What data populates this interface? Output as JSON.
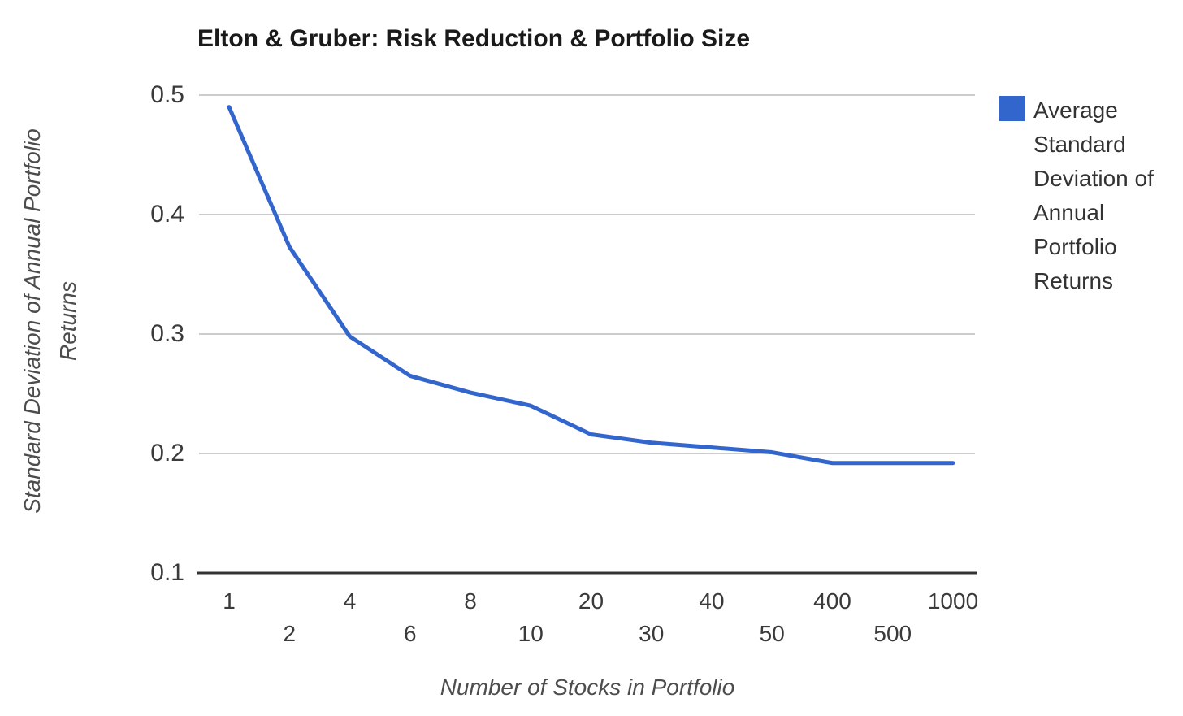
{
  "chart_data": {
    "type": "line",
    "title": "Elton & Gruber: Risk Reduction & Portfolio Size",
    "xlabel": "Number of Stocks in Portfolio",
    "ylabel": "Standard Deviation of Annual Portfolio Returns",
    "x_axis_type": "categorical-evenly-spaced",
    "x_tick_layout": "staggered-two-rows",
    "categories": [
      "1",
      "2",
      "4",
      "6",
      "8",
      "10",
      "20",
      "30",
      "40",
      "50",
      "400",
      "500",
      "1000"
    ],
    "series": [
      {
        "name": "Average Standard Deviation of Annual Portfolio Returns",
        "color": "#3366cc",
        "values": [
          0.49,
          0.373,
          0.298,
          0.265,
          0.251,
          0.24,
          0.216,
          0.209,
          0.205,
          0.201,
          0.192,
          0.192,
          0.192
        ]
      }
    ],
    "ylim": [
      0.1,
      0.5
    ],
    "yticks": [
      0.1,
      0.2,
      0.3,
      0.4,
      0.5
    ],
    "grid": "horizontal",
    "legend_position": "right"
  },
  "colors": {
    "background": "#ffffff",
    "series_line": "#3366cc",
    "gridline": "#cccccc",
    "axis_line": "#333333",
    "tick_label": "#3a3a3a",
    "axis_title": "#4d4d4d",
    "title": "#1a1a1a"
  }
}
